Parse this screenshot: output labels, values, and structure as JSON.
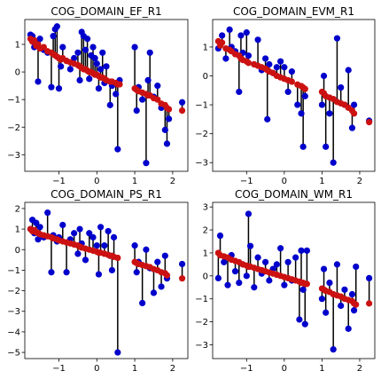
{
  "chart_data": [
    {
      "type": "scatter",
      "title": "COG_DOMAIN_EF_R1",
      "xlim": [
        -1.9,
        2.4
      ],
      "ylim": [
        -3.6,
        1.9
      ],
      "xticks": [
        -1,
        0,
        1,
        2
      ],
      "yticks": [
        1,
        0,
        -1,
        -2,
        -3
      ],
      "points": [
        [
          -1.75,
          1.35,
          1.2
        ],
        [
          -1.7,
          1.3,
          1.1
        ],
        [
          -1.65,
          0.9,
          1.15
        ],
        [
          -1.6,
          1.1,
          0.95
        ],
        [
          -1.55,
          -0.35,
          1.0
        ],
        [
          -1.5,
          1.2,
          0.85
        ],
        [
          -1.4,
          0.8,
          0.9
        ],
        [
          -1.3,
          0.7,
          0.75
        ],
        [
          -1.2,
          -0.55,
          0.7
        ],
        [
          -1.15,
          1.3,
          0.65
        ],
        [
          -1.1,
          1.55,
          0.6
        ],
        [
          -1.05,
          1.65,
          0.55
        ],
        [
          -1.0,
          -0.6,
          0.5
        ],
        [
          -0.95,
          0.2,
          0.45
        ],
        [
          -0.9,
          0.9,
          0.5
        ],
        [
          -0.8,
          0.4,
          0.4
        ],
        [
          -0.7,
          0.1,
          0.35
        ],
        [
          -0.6,
          0.5,
          0.3
        ],
        [
          -0.5,
          0.7,
          0.25
        ],
        [
          -0.45,
          -0.3,
          0.2
        ],
        [
          -0.4,
          1.45,
          0.15
        ],
        [
          -0.35,
          1.3,
          0.1
        ],
        [
          -0.3,
          0.8,
          0.1
        ],
        [
          -0.25,
          1.2,
          0.05
        ],
        [
          -0.2,
          -0.25,
          0.0
        ],
        [
          -0.15,
          0.6,
          0.0
        ],
        [
          -0.1,
          0.9,
          -0.05
        ],
        [
          -0.05,
          0.5,
          -0.1
        ],
        [
          0.0,
          0.3,
          -0.1
        ],
        [
          0.05,
          -0.6,
          -0.15
        ],
        [
          0.1,
          0.1,
          -0.2
        ],
        [
          0.15,
          0.7,
          -0.2
        ],
        [
          0.2,
          -0.4,
          -0.25
        ],
        [
          0.25,
          0.2,
          -0.3
        ],
        [
          0.35,
          -1.2,
          -0.35
        ],
        [
          0.4,
          -0.5,
          -0.35
        ],
        [
          0.5,
          -0.8,
          -0.4
        ],
        [
          0.55,
          -2.8,
          -0.45
        ],
        [
          0.6,
          -0.3,
          -0.45
        ],
        [
          1.0,
          0.9,
          -0.6
        ],
        [
          1.05,
          -1.4,
          -0.65
        ],
        [
          1.1,
          -0.55,
          -0.7
        ],
        [
          1.2,
          -1.0,
          -0.75
        ],
        [
          1.3,
          -3.3,
          -0.8
        ],
        [
          1.35,
          -0.3,
          -0.85
        ],
        [
          1.4,
          0.7,
          -0.85
        ],
        [
          1.5,
          -0.9,
          -0.95
        ],
        [
          1.6,
          -0.5,
          -1.0
        ],
        [
          1.7,
          -1.3,
          -1.15
        ],
        [
          1.8,
          -2.1,
          -1.2
        ],
        [
          1.85,
          -2.6,
          -1.3
        ],
        [
          1.9,
          -1.7,
          -1.35
        ],
        [
          2.25,
          -1.1,
          -1.4
        ]
      ]
    },
    {
      "type": "scatter",
      "title": "COG_DOMAIN_EVM_R1",
      "xlim": [
        -1.9,
        2.4
      ],
      "ylim": [
        -3.3,
        1.95
      ],
      "xticks": [
        -1,
        0,
        1,
        2
      ],
      "yticks": [
        1,
        0,
        -1,
        -2,
        -3
      ],
      "points": [
        [
          -1.75,
          0.95,
          1.2
        ],
        [
          -1.7,
          1.15,
          1.05
        ],
        [
          -1.65,
          1.4,
          1.15
        ],
        [
          -1.55,
          0.6,
          0.95
        ],
        [
          -1.45,
          1.6,
          0.9
        ],
        [
          -1.4,
          1.0,
          0.85
        ],
        [
          -1.3,
          0.85,
          0.75
        ],
        [
          -1.2,
          -0.55,
          0.7
        ],
        [
          -1.15,
          1.4,
          0.6
        ],
        [
          -1.1,
          0.8,
          0.55
        ],
        [
          -1.0,
          1.5,
          0.5
        ],
        [
          -0.95,
          0.7,
          0.45
        ],
        [
          -0.8,
          0.4,
          0.4
        ],
        [
          -0.7,
          1.25,
          0.35
        ],
        [
          -0.6,
          0.2,
          0.3
        ],
        [
          -0.5,
          0.6,
          0.25
        ],
        [
          -0.45,
          -1.5,
          0.2
        ],
        [
          -0.4,
          0.4,
          0.15
        ],
        [
          -0.3,
          0.1,
          0.1
        ],
        [
          -0.2,
          0.3,
          0.0
        ],
        [
          -0.1,
          0.5,
          -0.05
        ],
        [
          0.0,
          0.3,
          -0.1
        ],
        [
          0.1,
          -0.55,
          -0.15
        ],
        [
          0.2,
          0.15,
          -0.2
        ],
        [
          0.35,
          -1.0,
          -0.3
        ],
        [
          0.45,
          -1.3,
          -0.35
        ],
        [
          0.5,
          -2.45,
          -0.4
        ],
        [
          0.55,
          -0.7,
          -0.45
        ],
        [
          1.0,
          -1.0,
          -0.55
        ],
        [
          1.05,
          0.0,
          -0.6
        ],
        [
          1.1,
          -2.45,
          -0.7
        ],
        [
          1.2,
          -1.3,
          -0.75
        ],
        [
          1.3,
          -3.0,
          -0.8
        ],
        [
          1.4,
          1.3,
          -0.9
        ],
        [
          1.5,
          -0.4,
          -0.95
        ],
        [
          1.6,
          -1.0,
          -1.0
        ],
        [
          1.7,
          0.2,
          -1.1
        ],
        [
          1.8,
          -1.8,
          -1.2
        ],
        [
          1.85,
          -1.0,
          -1.3
        ],
        [
          2.25,
          -1.55,
          -1.6
        ]
      ]
    },
    {
      "type": "scatter",
      "title": "COG_DOMAIN_PS_R1",
      "xlim": [
        -1.9,
        2.4
      ],
      "ylim": [
        -5.3,
        2.3
      ],
      "xticks": [
        -1,
        0,
        1,
        2
      ],
      "yticks": [
        2,
        1,
        0,
        -1,
        -2,
        -3,
        -4,
        -5
      ],
      "points": [
        [
          -1.75,
          1.0,
          1.0
        ],
        [
          -1.7,
          1.45,
          0.9
        ],
        [
          -1.65,
          0.8,
          0.95
        ],
        [
          -1.6,
          1.3,
          0.85
        ],
        [
          -1.55,
          0.5,
          0.8
        ],
        [
          -1.5,
          1.1,
          0.75
        ],
        [
          -1.4,
          0.6,
          0.7
        ],
        [
          -1.3,
          1.8,
          0.65
        ],
        [
          -1.2,
          -1.1,
          0.6
        ],
        [
          -1.15,
          0.7,
          0.55
        ],
        [
          -1.05,
          0.4,
          0.5
        ],
        [
          -1.0,
          0.6,
          0.45
        ],
        [
          -0.9,
          1.2,
          0.4
        ],
        [
          -0.8,
          -1.1,
          0.35
        ],
        [
          -0.7,
          0.5,
          0.3
        ],
        [
          -0.6,
          0.8,
          0.25
        ],
        [
          -0.5,
          -0.2,
          0.2
        ],
        [
          -0.45,
          1.0,
          0.15
        ],
        [
          -0.4,
          0.3,
          0.1
        ],
        [
          -0.3,
          -0.5,
          0.05
        ],
        [
          -0.2,
          0.8,
          0.0
        ],
        [
          -0.1,
          0.6,
          -0.05
        ],
        [
          0.0,
          0.2,
          -0.1
        ],
        [
          0.05,
          -1.2,
          -0.15
        ],
        [
          0.1,
          1.1,
          -0.15
        ],
        [
          0.2,
          0.2,
          -0.2
        ],
        [
          0.3,
          0.9,
          -0.25
        ],
        [
          0.35,
          -0.3,
          -0.3
        ],
        [
          0.4,
          -1.0,
          -0.3
        ],
        [
          0.45,
          0.6,
          -0.35
        ],
        [
          0.55,
          -5.0,
          -0.4
        ],
        [
          1.0,
          0.2,
          -0.6
        ],
        [
          1.05,
          -1.1,
          -0.65
        ],
        [
          1.1,
          -0.6,
          -0.7
        ],
        [
          1.2,
          -2.6,
          -0.75
        ],
        [
          1.3,
          0.0,
          -0.8
        ],
        [
          1.4,
          -0.9,
          -0.85
        ],
        [
          1.5,
          -2.1,
          -0.95
        ],
        [
          1.6,
          -0.6,
          -1.0
        ],
        [
          1.7,
          -1.8,
          -1.1
        ],
        [
          1.8,
          -0.3,
          -1.15
        ],
        [
          1.85,
          -1.4,
          -1.25
        ],
        [
          2.25,
          -0.7,
          -1.4
        ]
      ]
    },
    {
      "type": "scatter",
      "title": "COG_DOMAIN_WM_R1",
      "xlim": [
        -1.9,
        2.4
      ],
      "ylim": [
        -3.6,
        3.2
      ],
      "xticks": [
        -1,
        0,
        1,
        2
      ],
      "yticks": [
        3,
        2,
        1,
        0,
        -1,
        -2,
        -3
      ],
      "points": [
        [
          -1.75,
          -0.1,
          1.0
        ],
        [
          -1.7,
          1.75,
          0.9
        ],
        [
          -1.6,
          0.6,
          0.85
        ],
        [
          -1.5,
          -0.4,
          0.8
        ],
        [
          -1.4,
          0.9,
          0.7
        ],
        [
          -1.3,
          0.2,
          0.65
        ],
        [
          -1.2,
          -0.3,
          0.6
        ],
        [
          -1.1,
          0.5,
          0.5
        ],
        [
          -1.0,
          0.0,
          0.45
        ],
        [
          -0.95,
          2.7,
          0.4
        ],
        [
          -0.9,
          1.3,
          0.4
        ],
        [
          -0.8,
          -0.5,
          0.35
        ],
        [
          -0.7,
          0.8,
          0.3
        ],
        [
          -0.6,
          0.1,
          0.25
        ],
        [
          -0.5,
          0.6,
          0.2
        ],
        [
          -0.4,
          -0.2,
          0.15
        ],
        [
          -0.3,
          0.3,
          0.1
        ],
        [
          -0.2,
          0.5,
          0.05
        ],
        [
          -0.1,
          1.2,
          0.0
        ],
        [
          0.0,
          -0.4,
          -0.05
        ],
        [
          0.1,
          0.6,
          -0.1
        ],
        [
          0.2,
          -0.2,
          -0.15
        ],
        [
          0.3,
          0.8,
          -0.2
        ],
        [
          0.4,
          -1.9,
          -0.25
        ],
        [
          0.45,
          1.1,
          -0.3
        ],
        [
          0.5,
          -0.6,
          -0.3
        ],
        [
          0.55,
          -2.1,
          -0.35
        ],
        [
          0.6,
          1.1,
          -0.35
        ],
        [
          1.0,
          -1.0,
          -0.55
        ],
        [
          1.05,
          0.3,
          -0.6
        ],
        [
          1.1,
          -1.6,
          -0.65
        ],
        [
          1.2,
          -0.3,
          -0.7
        ],
        [
          1.3,
          -3.2,
          -0.8
        ],
        [
          1.4,
          0.5,
          -0.85
        ],
        [
          1.5,
          -1.3,
          -0.9
        ],
        [
          1.6,
          -0.6,
          -1.0
        ],
        [
          1.7,
          -2.3,
          -1.05
        ],
        [
          1.8,
          -0.8,
          -1.1
        ],
        [
          1.85,
          -1.5,
          -1.2
        ],
        [
          1.9,
          0.4,
          -1.25
        ],
        [
          2.25,
          -0.1,
          -1.2
        ]
      ]
    }
  ]
}
